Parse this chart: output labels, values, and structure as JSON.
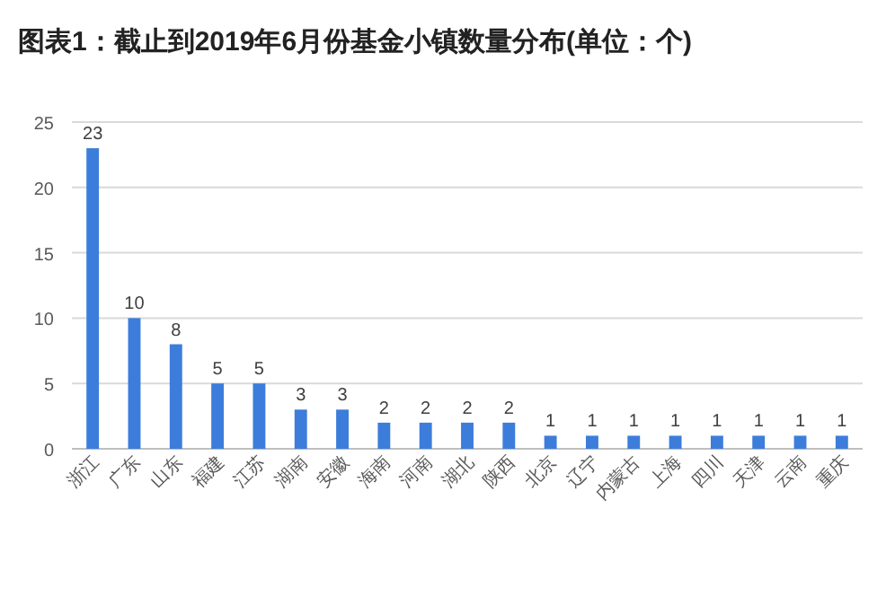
{
  "chart_data": {
    "type": "bar",
    "title": "图表1：截止到2019年6月份基金小镇数量分布(单位：个)",
    "categories": [
      "浙江",
      "广东",
      "山东",
      "福建",
      "江苏",
      "湖南",
      "安徽",
      "海南",
      "河南",
      "湖北",
      "陕西",
      "北京",
      "辽宁",
      "内蒙古",
      "上海",
      "四川",
      "天津",
      "云南",
      "重庆"
    ],
    "values": [
      23,
      10,
      8,
      5,
      5,
      3,
      3,
      2,
      2,
      2,
      2,
      1,
      1,
      1,
      1,
      1,
      1,
      1,
      1
    ],
    "color": "#3c7ddb",
    "ylim": [
      0,
      25
    ],
    "yticks": [
      0,
      5,
      10,
      15,
      20,
      25
    ],
    "grid": "y",
    "data_labels": true
  }
}
